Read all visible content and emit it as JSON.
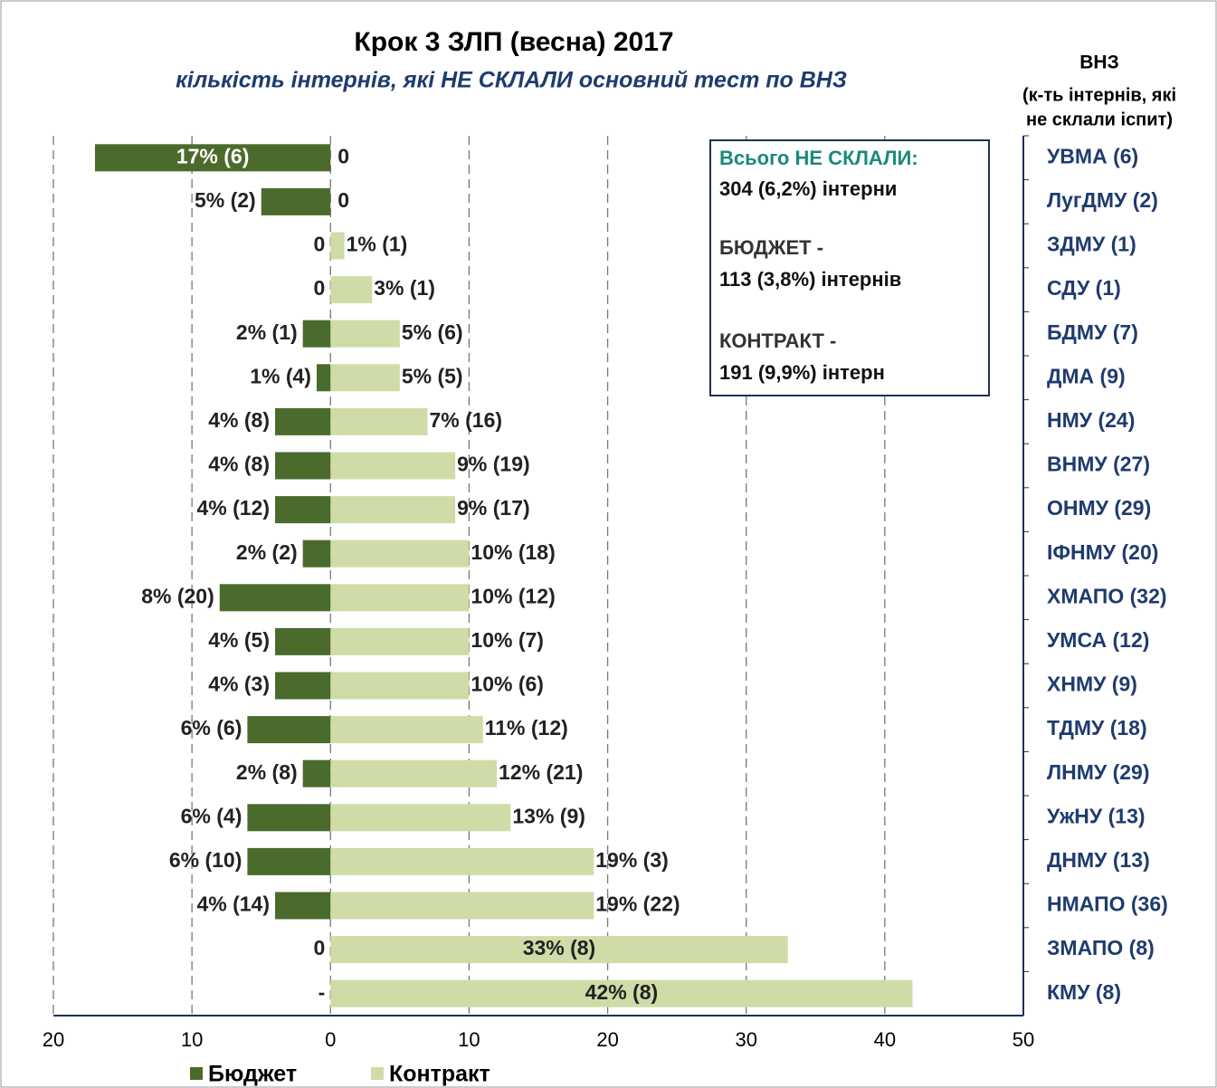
{
  "chart_data": {
    "type": "diverging-bar",
    "title": "Крок 3 ЗЛП (весна) 2017",
    "subtitle": "кількість інтернів, які  НЕ СКЛАЛИ  основний тест по ВНЗ",
    "right_header": [
      "ВНЗ",
      "(к-ть інтернів, які",
      "не склали іспит)"
    ],
    "summary_box": [
      "Всього НЕ СКЛАЛИ:",
      "304 (6,2%) інтерни",
      "БЮДЖЕТ -",
      "113 (3,8%) інтернів",
      "КОНТРАКТ -",
      "191 (9,9%) інтерн"
    ],
    "categories": [
      "УВМА (6)",
      "ЛугДМУ (2)",
      "ЗДМУ (1)",
      "СДУ (1)",
      "БДМУ (7)",
      "ДМА (9)",
      "НМУ (24)",
      "ВНМУ (27)",
      "ОНМУ (29)",
      "ІФНМУ (20)",
      "ХМАПО (32)",
      "УМСА (12)",
      "ХНМУ (9)",
      "ТДМУ (18)",
      "ЛНМУ (29)",
      "УжНУ (13)",
      "ДНМУ (13)",
      "НМАПО (36)",
      "ЗМАПО (8)",
      "КМУ  (8)"
    ],
    "series": [
      {
        "name": "Бюджет",
        "color": "#4b6b2c",
        "direction": "left",
        "values": [
          17,
          5,
          0,
          0,
          2,
          1,
          4,
          4,
          4,
          2,
          8,
          4,
          4,
          6,
          2,
          6,
          6,
          4,
          0,
          null
        ],
        "value_labels": [
          "17% (6)",
          "5% (2)",
          "0",
          "0",
          "2% (1)",
          "1% (4)",
          "4% (8)",
          "4% (8)",
          "4% (12)",
          "2% (2)",
          "8% (20)",
          "4% (5)",
          "4% (3)",
          "6% (6)",
          "2% (8)",
          "6% (4)",
          "6% (10)",
          "4% (14)",
          "0",
          "-"
        ]
      },
      {
        "name": "Контракт",
        "color": "#cfdca8",
        "direction": "right",
        "values": [
          0,
          0,
          1,
          3,
          5,
          5,
          7,
          9,
          9,
          10,
          10,
          10,
          10,
          11,
          12,
          13,
          19,
          19,
          33,
          42
        ],
        "value_labels": [
          "0",
          "0",
          "1% (1)",
          "3% (1)",
          "5% (6)",
          "5% (5)",
          "7% (16)",
          "9% (19)",
          "9% (17)",
          "10% (18)",
          "10% (12)",
          "10% (7)",
          "10% (6)",
          "11% (12)",
          "12% (21)",
          "13% (9)",
          "19% (3)",
          "19% (22)",
          "33% (8)",
          "42% (8)"
        ]
      }
    ],
    "xlim": [
      -20,
      50
    ],
    "xticks": [
      {
        "value": -20,
        "label": "20"
      },
      {
        "value": -10,
        "label": "10"
      },
      0,
      10,
      20,
      30,
      40,
      50
    ],
    "grid": true,
    "legend": "bottom"
  }
}
